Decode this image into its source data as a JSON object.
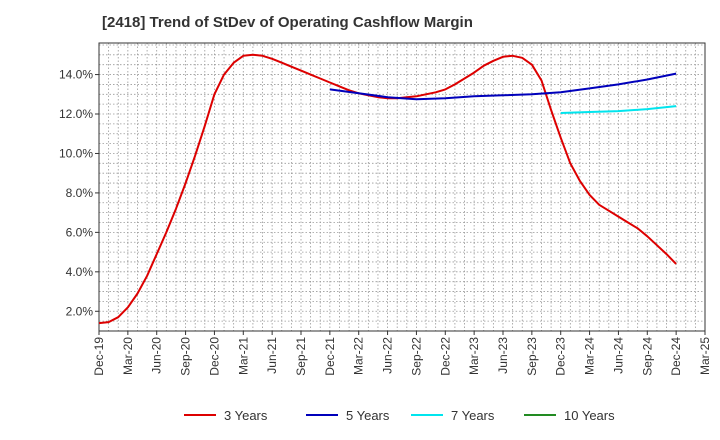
{
  "chart_data": {
    "type": "line",
    "title": "[2418]  Trend of StDev of Operating Cashflow Margin",
    "xlabel": "",
    "ylabel": "",
    "x_tick_labels": [
      "Dec-19",
      "Mar-20",
      "Jun-20",
      "Sep-20",
      "Dec-20",
      "Mar-21",
      "Jun-21",
      "Sep-21",
      "Dec-21",
      "Mar-22",
      "Jun-22",
      "Sep-22",
      "Dec-22",
      "Mar-23",
      "Jun-23",
      "Sep-23",
      "Dec-23",
      "Mar-24",
      "Jun-24",
      "Sep-24",
      "Dec-24",
      "Mar-25"
    ],
    "y_tick_labels": [
      "2.0%",
      "4.0%",
      "6.0%",
      "8.0%",
      "10.0%",
      "12.0%",
      "14.0%"
    ],
    "y_ticks": [
      2,
      4,
      6,
      8,
      10,
      12,
      14
    ],
    "ylim": [
      1.0,
      15.6
    ],
    "xlim": [
      "2019-12",
      "2025-03"
    ],
    "grid": true,
    "legend_position": "bottom",
    "series": [
      {
        "name": "3 Years",
        "color": "#dd0000",
        "x": [
          "2019-12",
          "2020-01",
          "2020-02",
          "2020-03",
          "2020-04",
          "2020-05",
          "2020-06",
          "2020-07",
          "2020-08",
          "2020-09",
          "2020-10",
          "2020-11",
          "2020-12",
          "2021-01",
          "2021-02",
          "2021-03",
          "2021-04",
          "2021-05",
          "2021-06",
          "2021-07",
          "2021-08",
          "2021-09",
          "2021-10",
          "2021-11",
          "2021-12",
          "2022-01",
          "2022-02",
          "2022-03",
          "2022-04",
          "2022-05",
          "2022-06",
          "2022-07",
          "2022-08",
          "2022-09",
          "2022-10",
          "2022-11",
          "2022-12",
          "2023-01",
          "2023-02",
          "2023-03",
          "2023-04",
          "2023-05",
          "2023-06",
          "2023-07",
          "2023-08",
          "2023-09",
          "2023-10",
          "2023-11",
          "2023-12",
          "2024-01",
          "2024-02",
          "2024-03",
          "2024-04",
          "2024-05",
          "2024-06",
          "2024-07",
          "2024-08",
          "2024-09",
          "2024-10",
          "2024-11",
          "2024-12"
        ],
        "values": [
          1.4,
          1.45,
          1.7,
          2.2,
          2.9,
          3.8,
          4.9,
          6.0,
          7.2,
          8.5,
          9.9,
          11.4,
          13.0,
          14.0,
          14.6,
          14.95,
          15.0,
          14.95,
          14.8,
          14.6,
          14.4,
          14.2,
          14.0,
          13.8,
          13.6,
          13.4,
          13.2,
          13.05,
          12.95,
          12.85,
          12.8,
          12.8,
          12.85,
          12.9,
          13.0,
          13.1,
          13.25,
          13.5,
          13.8,
          14.1,
          14.45,
          14.7,
          14.9,
          14.95,
          14.85,
          14.5,
          13.7,
          12.2,
          10.8,
          9.5,
          8.6,
          7.9,
          7.4,
          7.1,
          6.8,
          6.5,
          6.2,
          5.8,
          5.35,
          4.9,
          4.4
        ]
      },
      {
        "name": "5 Years",
        "color": "#0000bb",
        "x": [
          "2021-12",
          "2022-03",
          "2022-06",
          "2022-09",
          "2022-12",
          "2023-03",
          "2023-06",
          "2023-09",
          "2023-12",
          "2024-03",
          "2024-06",
          "2024-09",
          "2024-12"
        ],
        "values": [
          13.25,
          13.05,
          12.85,
          12.75,
          12.8,
          12.9,
          12.95,
          13.0,
          13.1,
          13.3,
          13.5,
          13.75,
          14.05
        ]
      },
      {
        "name": "7 Years",
        "color": "#00e5ee",
        "x": [
          "2023-12",
          "2024-03",
          "2024-06",
          "2024-09",
          "2024-12"
        ],
        "values": [
          12.05,
          12.1,
          12.15,
          12.25,
          12.4
        ]
      },
      {
        "name": "10 Years",
        "color": "#228b22",
        "x": [],
        "values": []
      }
    ]
  }
}
